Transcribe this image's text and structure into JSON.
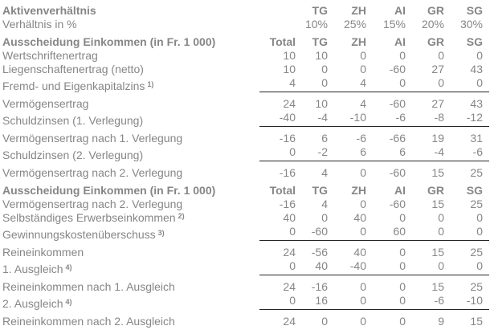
{
  "colors": {
    "text": "#868686",
    "sum_line": "#262626",
    "background": "#ffffff"
  },
  "table": {
    "rows": [
      {
        "type": "header",
        "label": "Aktivenverhältnis",
        "values": [
          "",
          "TG",
          "ZH",
          "AI",
          "GR",
          "SG"
        ]
      },
      {
        "type": "normal",
        "label": "Verhältnis in %",
        "values": [
          "",
          "10%",
          "25%",
          "15%",
          "20%",
          "30%"
        ]
      },
      {
        "type": "header",
        "label": "Ausscheidung Einkommen (in Fr. 1 000)",
        "values": [
          "Total",
          "TG",
          "ZH",
          "AI",
          "GR",
          "SG"
        ]
      },
      {
        "type": "normal",
        "label": "Wertschriftenertrag",
        "values": [
          "10",
          "10",
          "0",
          "0",
          "0",
          "0"
        ]
      },
      {
        "type": "normal",
        "label": "Liegenschaftenertrag (netto)",
        "values": [
          "10",
          "0",
          "0",
          "-60",
          "27",
          "43"
        ]
      },
      {
        "type": "underline",
        "label": "Fremd- und Eigenkapitalzins",
        "sup": "1)",
        "values": [
          "4",
          "0",
          "4",
          "0",
          "0",
          "0"
        ]
      },
      {
        "type": "normal",
        "label": "Vermögensertrag",
        "values": [
          "24",
          "10",
          "4",
          "-60",
          "27",
          "43"
        ]
      },
      {
        "type": "underline",
        "label": "Schuldzinsen (1. Verlegung)",
        "values": [
          "-40",
          "-4",
          "-10",
          "-6",
          "-8",
          "-12"
        ]
      },
      {
        "type": "normal",
        "label": "Vermögensertrag nach 1. Verlegung",
        "values": [
          "-16",
          "6",
          "-6",
          "-66",
          "19",
          "31"
        ]
      },
      {
        "type": "underline",
        "label": "Schuldzinsen (2. Verlegung)",
        "values": [
          "0",
          "-2",
          "6",
          "6",
          "-4",
          "-6"
        ]
      },
      {
        "type": "normal",
        "label": "Vermögensertrag nach 2. Verlegung",
        "values": [
          "-16",
          "4",
          "0",
          "-60",
          "15",
          "25"
        ]
      },
      {
        "type": "header",
        "label": "Ausscheidung Einkommen (in Fr. 1 000)",
        "values": [
          "Total",
          "TG",
          "ZH",
          "AI",
          "GR",
          "SG"
        ]
      },
      {
        "type": "normal",
        "label": "Vermögensertrag nach 2. Verlegung",
        "values": [
          "-16",
          "4",
          "0",
          "-60",
          "15",
          "25"
        ]
      },
      {
        "type": "normal",
        "label": "Selbständiges Erwerbseinkommen",
        "sup": "2)",
        "values": [
          "40",
          "0",
          "40",
          "0",
          "0",
          "0"
        ]
      },
      {
        "type": "underline",
        "label": "Gewinnungskostenüberschuss",
        "sup": "3)",
        "values": [
          "0",
          "-60",
          "0",
          "60",
          "0",
          "0"
        ]
      },
      {
        "type": "normal",
        "label": "Reineinkommen",
        "values": [
          "24",
          "-56",
          "40",
          "0",
          "15",
          "25"
        ]
      },
      {
        "type": "underline",
        "label": "1. Ausgleich",
        "sup": "4)",
        "values": [
          "0",
          "40",
          "-40",
          "0",
          "0",
          "0"
        ]
      },
      {
        "type": "normal",
        "label": "Reineinkommen nach 1. Ausgleich",
        "values": [
          "24",
          "-16",
          "0",
          "0",
          "15",
          "25"
        ]
      },
      {
        "type": "underline",
        "label": "2. Ausgleich",
        "sup": "4)",
        "values": [
          "0",
          "16",
          "0",
          "0",
          "-6",
          "-10"
        ]
      },
      {
        "type": "normal",
        "label": "Reineinkommen nach 2. Ausgleich",
        "values": [
          "24",
          "0",
          "0",
          "0",
          "9",
          "15"
        ]
      }
    ]
  }
}
